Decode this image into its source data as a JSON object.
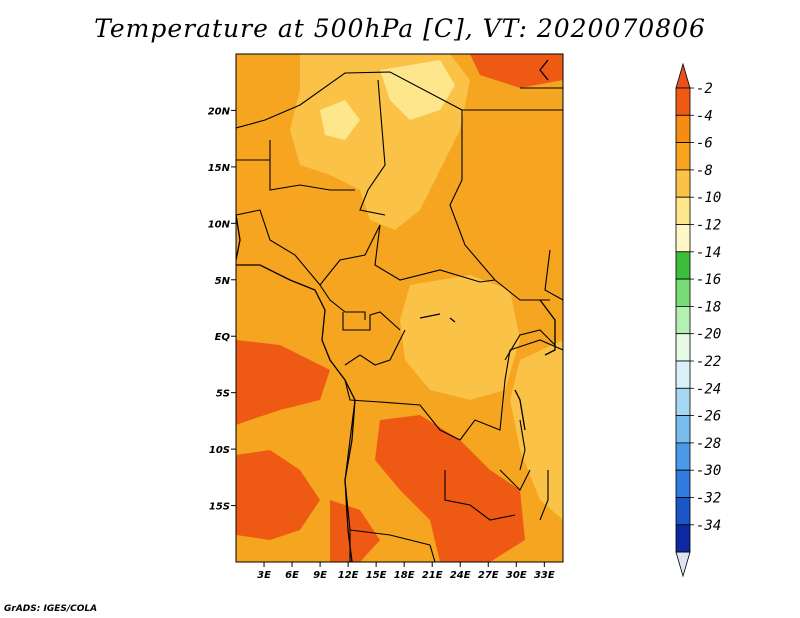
{
  "title": "Temperature at 500hPa [C], VT: 2020070806",
  "credit": "GrADS: IGES/COLA",
  "map": {
    "lon_range": [
      0,
      35
    ],
    "lat_range": [
      -20,
      25
    ],
    "lon_ticks": [
      {
        "value": 3,
        "label": "3E"
      },
      {
        "value": 6,
        "label": "6E"
      },
      {
        "value": 9,
        "label": "9E"
      },
      {
        "value": 12,
        "label": "12E"
      },
      {
        "value": 15,
        "label": "15E"
      },
      {
        "value": 18,
        "label": "18E"
      },
      {
        "value": 21,
        "label": "21E"
      },
      {
        "value": 24,
        "label": "24E"
      },
      {
        "value": 27,
        "label": "27E"
      },
      {
        "value": 30,
        "label": "30E"
      },
      {
        "value": 33,
        "label": "33E"
      }
    ],
    "lat_ticks": [
      {
        "value": 20,
        "label": "20N"
      },
      {
        "value": 15,
        "label": "15N"
      },
      {
        "value": 10,
        "label": "10N"
      },
      {
        "value": 5,
        "label": "5N"
      },
      {
        "value": 0,
        "label": "EQ"
      },
      {
        "value": -5,
        "label": "5S"
      },
      {
        "value": -10,
        "label": "10S"
      },
      {
        "value": -15,
        "label": "15S"
      }
    ],
    "base_color": "#f5a520"
  },
  "colorbar": {
    "top_color": "#e8501e",
    "bottom_color": "#dde3f5",
    "levels": [
      {
        "label": "-2",
        "color": "#ee5a14"
      },
      {
        "label": "-4",
        "color": "#f58c14"
      },
      {
        "label": "-6",
        "color": "#f8a41e"
      },
      {
        "label": "-8",
        "color": "#fac246"
      },
      {
        "label": "-10",
        "color": "#fde68c"
      },
      {
        "label": "-12",
        "color": "#fff8c6"
      },
      {
        "label": "-14",
        "color": "#3cbe3c"
      },
      {
        "label": "-16",
        "color": "#78dc78"
      },
      {
        "label": "-18",
        "color": "#b4f0b4"
      },
      {
        "label": "-20",
        "color": "#e6fae6"
      },
      {
        "label": "-22",
        "color": "#dcf0fa"
      },
      {
        "label": "-24",
        "color": "#a6d8f4"
      },
      {
        "label": "-26",
        "color": "#78bcf0"
      },
      {
        "label": "-28",
        "color": "#4a9ae8"
      },
      {
        "label": "-30",
        "color": "#2f7be0"
      },
      {
        "label": "-32",
        "color": "#1a56c8"
      },
      {
        "label": "-34",
        "color": "#0e28a0"
      }
    ],
    "end_label": "-34",
    "end_color": "#0a1070"
  }
}
